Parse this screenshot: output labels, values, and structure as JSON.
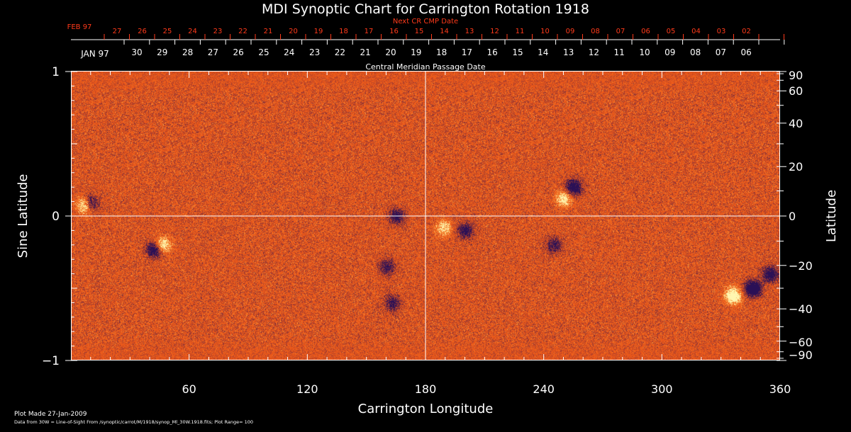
{
  "chart_data": {
    "type": "heatmap",
    "title": "MDI Synoptic Chart for Carrington Rotation 1918",
    "xlabel": "Carrington Longitude",
    "ylabel_left": "Sine Latitude",
    "ylabel_right": "Latitude",
    "xlim": [
      0,
      360
    ],
    "ylim": [
      -1,
      1
    ],
    "x_ticks": [
      60,
      120,
      180,
      240,
      300,
      360
    ],
    "y_left_ticks": [
      {
        "value": 1,
        "label": "1"
      },
      {
        "value": 0,
        "label": "0"
      },
      {
        "value": -1,
        "label": "−1"
      }
    ],
    "y_right_ticks_deg": [
      90,
      60,
      40,
      20,
      0,
      -20,
      -40,
      -60,
      -90
    ],
    "y_right_tick_labels": [
      "90",
      "60",
      "40",
      "20",
      "0",
      "−20",
      "−40",
      "−60",
      "−90"
    ],
    "next_cr_label": "Next CR CMP Date",
    "cmp_label": "Central Meridian Passage Date",
    "next_cr": {
      "month_label": "FEB 97",
      "days": [
        "27",
        "26",
        "25",
        "24",
        "23",
        "22",
        "21",
        "20",
        "19",
        "18",
        "17",
        "16",
        "15",
        "14",
        "13",
        "12",
        "11",
        "10",
        "09",
        "08",
        "07",
        "06",
        "05",
        "04",
        "03",
        "02"
      ]
    },
    "cmp": {
      "month_label": "JAN 97",
      "days": [
        "30",
        "29",
        "28",
        "27",
        "26",
        "25",
        "24",
        "23",
        "22",
        "21",
        "20",
        "19",
        "18",
        "17",
        "16",
        "15",
        "14",
        "13",
        "12",
        "11",
        "10",
        "09",
        "08",
        "07",
        "06"
      ]
    },
    "colors": {
      "background": "#000000",
      "field": "#e8561a",
      "positive": "#fff2b0",
      "negative": "#1a1460",
      "accent": "#ff3a1a"
    },
    "magnetic_regions": [
      {
        "lon": 7,
        "sinlat": 0.08,
        "polarity": "positive",
        "strength": 1.0
      },
      {
        "lon": 9,
        "sinlat": 0.09,
        "polarity": "negative",
        "strength": 0.9
      },
      {
        "lon": 46,
        "sinlat": -0.2,
        "polarity": "positive",
        "strength": 0.7
      },
      {
        "lon": 42,
        "sinlat": -0.23,
        "polarity": "negative",
        "strength": 0.8
      },
      {
        "lon": 165,
        "sinlat": 0.0,
        "polarity": "negative",
        "strength": 0.6
      },
      {
        "lon": 160,
        "sinlat": -0.35,
        "polarity": "negative",
        "strength": 0.5
      },
      {
        "lon": 163,
        "sinlat": -0.6,
        "polarity": "negative",
        "strength": 0.5
      },
      {
        "lon": 189,
        "sinlat": -0.08,
        "polarity": "positive",
        "strength": 0.5
      },
      {
        "lon": 200,
        "sinlat": -0.1,
        "polarity": "negative",
        "strength": 0.6
      },
      {
        "lon": 250,
        "sinlat": 0.12,
        "polarity": "positive",
        "strength": 0.6
      },
      {
        "lon": 255,
        "sinlat": 0.2,
        "polarity": "negative",
        "strength": 0.8
      },
      {
        "lon": 245,
        "sinlat": -0.2,
        "polarity": "negative",
        "strength": 0.5
      },
      {
        "lon": 336,
        "sinlat": -0.55,
        "polarity": "positive",
        "strength": 0.9
      },
      {
        "lon": 346,
        "sinlat": -0.5,
        "polarity": "negative",
        "strength": 1.0
      },
      {
        "lon": 355,
        "sinlat": -0.4,
        "polarity": "negative",
        "strength": 0.7
      }
    ]
  },
  "footer": {
    "plot_made": "Plot Made 27-Jan-2009",
    "data_source": "Data from 30W = Line-of-Sight From /synoptic/carrot/M/1918/synop_Ml_30W.1918.fits; Plot Range= 100"
  }
}
